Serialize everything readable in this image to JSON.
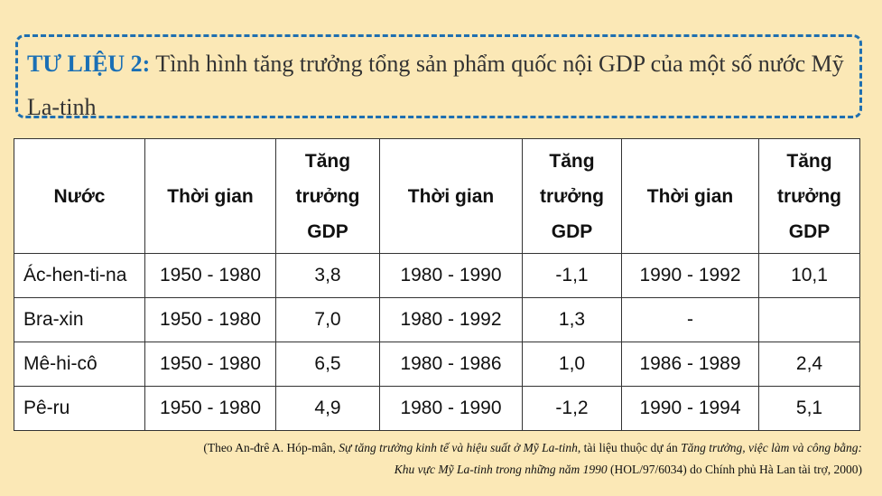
{
  "title": {
    "label": "TƯ LIỆU 2:",
    "text": " Tình hình tăng trưởng tổng sản phẩm quốc nội GDP của một số nước Mỹ La-tinh"
  },
  "table": {
    "headers": [
      "Nước",
      "Thời gian",
      "Tăng trưởng GDP",
      "Thời gian",
      "Tăng trưởng GDP",
      "Thời gian",
      "Tăng trưởng GDP"
    ],
    "rows": [
      [
        "Ác-hen-ti-na",
        "1950 - 1980",
        "3,8",
        "1980 - 1990",
        "-1,1",
        "1990 - 1992",
        "10,1"
      ],
      [
        "Bra-xin",
        "1950 - 1980",
        "7,0",
        "1980 - 1992",
        "1,3",
        "-",
        ""
      ],
      [
        "Mê-hi-cô",
        "1950 - 1980",
        "6,5",
        "1980 - 1986",
        "1,0",
        "1986 - 1989",
        "2,4"
      ],
      [
        "Pê-ru",
        "1950 - 1980",
        "4,9",
        "1980 - 1990",
        "-1,2",
        "1990 - 1994",
        "5,1"
      ]
    ]
  },
  "source": {
    "p1": "(Theo An-đrê A. Hóp-mân, ",
    "p2": "Sự tăng trưởng kinh tế và hiệu suất ở Mỹ La-tinh",
    "p3": ", tài liệu thuộc dự án ",
    "p4": "Tăng trưởng, việc làm và công bằng:",
    "p5": "Khu vực Mỹ La-tinh trong những năm 1990",
    "p6": " (HOL/97/6034) do Chính phủ Hà Lan tài trợ, 2000)"
  }
}
